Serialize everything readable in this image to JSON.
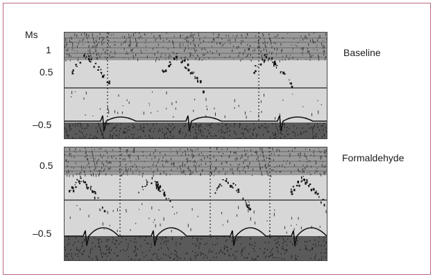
{
  "chart_data": {
    "type": "line",
    "unit_label": "Ms",
    "panels": [
      {
        "label": "Baseline",
        "ticks": [
          "1",
          "0.5",
          "–0.5"
        ]
      },
      {
        "label": "Formaldehyde",
        "ticks": [
          "0.5",
          "–0.5"
        ]
      }
    ],
    "grid": false
  },
  "colors": {
    "frame": "#b9687a",
    "panel_bg": "#d7d7d7",
    "trace": "#111111",
    "band": "#3a3a3a"
  }
}
